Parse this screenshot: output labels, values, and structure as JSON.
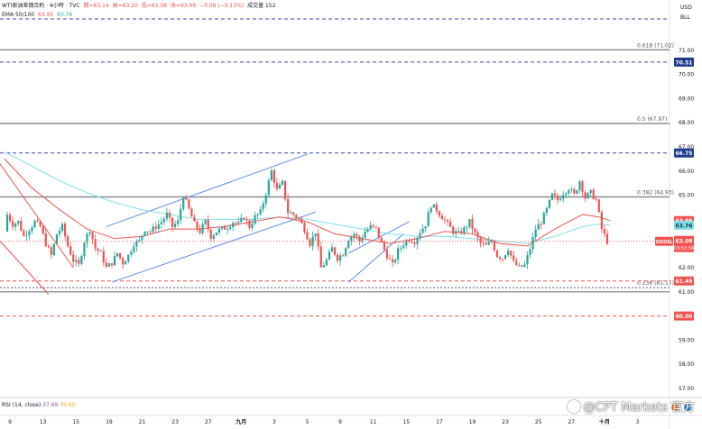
{
  "legend": {
    "symbol": "WTI原油差價合約 · 4小時 · TVC",
    "ohlc": [
      "開=63.14",
      "高=63.20",
      "低=63.08",
      "收=63.09",
      "−0.08 (−0.13%)",
      "成交量 152"
    ],
    "ema_label": "EMA 50/100",
    "ema_values": [
      "63.95",
      "63.76"
    ],
    "rsi_label": "RSI (14, close)",
    "rsi_values": [
      "37.69",
      "39.60"
    ]
  },
  "axis_top": {
    "currency": "USD",
    "unit": "BLL"
  },
  "colors": {
    "up": "#26a69a",
    "down": "#ef5350",
    "ema50": "#ef5350",
    "ema100": "#80deea",
    "channel": "#5b8def",
    "fib": "#787b86",
    "level": "#3949ab",
    "support_line": "#ef5350"
  },
  "watermark": "@CPT Markets 官方",
  "chart_data": {
    "type": "candlestick",
    "y_axis": {
      "ticks": [
        71.0,
        70.0,
        69.0,
        68.0,
        67.0,
        66.0,
        65.0,
        64.0,
        63.0,
        62.0,
        61.0,
        60.0,
        59.0,
        58.0,
        57.0
      ],
      "tick_labels": [
        "71.00",
        "70.00",
        "69.00",
        "68.00",
        "67.00",
        "66.00",
        "65.00",
        "64.00",
        "63.00",
        "62.00",
        "61.00",
        "60.00",
        "59.00",
        "58.00",
        "57.00"
      ],
      "range": [
        56.6,
        72.5
      ]
    },
    "x_axis": {
      "tick_labels": [
        "9",
        "13",
        "15",
        "19",
        "21",
        "23",
        "27",
        "九月",
        "3",
        "5",
        "9",
        "11",
        "15",
        "17",
        "19",
        "23",
        "25",
        "27",
        "十月",
        "3"
      ],
      "tick_index": [
        2,
        14,
        26,
        38,
        50,
        62,
        74,
        86,
        98,
        110,
        122,
        134,
        146,
        158,
        170,
        182,
        194,
        206,
        218,
        230
      ]
    },
    "candles_anchors": [
      [
        0,
        63.5
      ],
      [
        1,
        64.2
      ],
      [
        3,
        63.8
      ],
      [
        5,
        63.9
      ],
      [
        7,
        63.3
      ],
      [
        9,
        63.6
      ],
      [
        11,
        63.9
      ],
      [
        13,
        63.7
      ],
      [
        15,
        63.0
      ],
      [
        17,
        62.5
      ],
      [
        19,
        63.4
      ],
      [
        21,
        63.7
      ],
      [
        23,
        62.9
      ],
      [
        25,
        62.3
      ],
      [
        27,
        62.1
      ],
      [
        29,
        63.1
      ],
      [
        31,
        63.6
      ],
      [
        33,
        62.8
      ],
      [
        35,
        62.6
      ],
      [
        37,
        62.0
      ],
      [
        39,
        62.2
      ],
      [
        41,
        62.6
      ],
      [
        43,
        62.2
      ],
      [
        45,
        62.5
      ],
      [
        47,
        63.0
      ],
      [
        49,
        63.1
      ],
      [
        51,
        63.6
      ],
      [
        53,
        63.5
      ],
      [
        55,
        63.7
      ],
      [
        57,
        63.9
      ],
      [
        59,
        64.2
      ],
      [
        61,
        63.7
      ],
      [
        63,
        63.9
      ],
      [
        65,
        65.0
      ],
      [
        67,
        64.4
      ],
      [
        69,
        63.8
      ],
      [
        71,
        63.5
      ],
      [
        73,
        63.9
      ],
      [
        75,
        63.3
      ],
      [
        77,
        63.5
      ],
      [
        79,
        63.6
      ],
      [
        81,
        63.7
      ],
      [
        83,
        63.9
      ],
      [
        85,
        63.8
      ],
      [
        87,
        64.1
      ],
      [
        89,
        63.7
      ],
      [
        91,
        64.1
      ],
      [
        93,
        64.3
      ],
      [
        95,
        65.1
      ],
      [
        97,
        66.0
      ],
      [
        99,
        65.2
      ],
      [
        101,
        65.5
      ],
      [
        103,
        64.3
      ],
      [
        105,
        64.2
      ],
      [
        107,
        64.0
      ],
      [
        109,
        63.6
      ],
      [
        111,
        63.0
      ],
      [
        113,
        63.5
      ],
      [
        115,
        62.0
      ],
      [
        117,
        62.3
      ],
      [
        119,
        62.8
      ],
      [
        121,
        62.4
      ],
      [
        123,
        62.6
      ],
      [
        125,
        63.2
      ],
      [
        127,
        63.4
      ],
      [
        129,
        63.1
      ],
      [
        131,
        63.5
      ],
      [
        133,
        63.7
      ],
      [
        135,
        63.6
      ],
      [
        137,
        63.0
      ],
      [
        139,
        62.5
      ],
      [
        141,
        62.1
      ],
      [
        143,
        62.7
      ],
      [
        145,
        63.0
      ],
      [
        147,
        63.2
      ],
      [
        149,
        63.1
      ],
      [
        151,
        63.5
      ],
      [
        153,
        63.8
      ],
      [
        155,
        64.6
      ],
      [
        157,
        64.4
      ],
      [
        159,
        64.1
      ],
      [
        161,
        63.8
      ],
      [
        163,
        63.5
      ],
      [
        165,
        63.4
      ],
      [
        167,
        63.6
      ],
      [
        169,
        63.9
      ],
      [
        171,
        63.4
      ],
      [
        173,
        63.0
      ],
      [
        175,
        62.9
      ],
      [
        177,
        63.1
      ],
      [
        179,
        62.5
      ],
      [
        181,
        62.4
      ],
      [
        183,
        62.8
      ],
      [
        185,
        62.2
      ],
      [
        187,
        62.0
      ],
      [
        189,
        62.1
      ],
      [
        191,
        62.8
      ],
      [
        193,
        63.6
      ],
      [
        195,
        63.9
      ],
      [
        197,
        64.4
      ],
      [
        199,
        65.0
      ],
      [
        201,
        64.8
      ],
      [
        203,
        65.1
      ],
      [
        205,
        65.3
      ],
      [
        207,
        65.0
      ],
      [
        209,
        65.6
      ],
      [
        211,
        64.9
      ],
      [
        213,
        65.1
      ],
      [
        215,
        64.8
      ],
      [
        217,
        63.6
      ],
      [
        219,
        63.09
      ]
    ],
    "ema50": [
      [
        0,
        66.5
      ],
      [
        10,
        65.3
      ],
      [
        20,
        64.4
      ],
      [
        30,
        63.6
      ],
      [
        40,
        63.2
      ],
      [
        50,
        63.3
      ],
      [
        60,
        63.6
      ],
      [
        70,
        63.6
      ],
      [
        80,
        63.7
      ],
      [
        90,
        63.9
      ],
      [
        100,
        64.1
      ],
      [
        110,
        63.9
      ],
      [
        120,
        63.4
      ],
      [
        130,
        63.2
      ],
      [
        140,
        63.0
      ],
      [
        150,
        63.2
      ],
      [
        160,
        63.5
      ],
      [
        170,
        63.4
      ],
      [
        180,
        63.0
      ],
      [
        190,
        62.9
      ],
      [
        200,
        63.6
      ],
      [
        210,
        64.2
      ],
      [
        216,
        64.1
      ],
      [
        220,
        63.95
      ]
    ],
    "ema100": [
      [
        0,
        66.8
      ],
      [
        10,
        66.2
      ],
      [
        20,
        65.6
      ],
      [
        30,
        65.1
      ],
      [
        40,
        64.7
      ],
      [
        50,
        64.4
      ],
      [
        60,
        64.2
      ],
      [
        70,
        64.0
      ],
      [
        80,
        64.0
      ],
      [
        90,
        64.0
      ],
      [
        100,
        64.1
      ],
      [
        110,
        64.0
      ],
      [
        120,
        63.8
      ],
      [
        130,
        63.6
      ],
      [
        140,
        63.4
      ],
      [
        150,
        63.3
      ],
      [
        160,
        63.3
      ],
      [
        170,
        63.2
      ],
      [
        180,
        63.1
      ],
      [
        190,
        63.0
      ],
      [
        200,
        63.3
      ],
      [
        210,
        63.7
      ],
      [
        216,
        63.8
      ],
      [
        220,
        63.76
      ]
    ],
    "fib_levels": [
      {
        "label": "0.618 (71.02)",
        "price": 71.02
      },
      {
        "label": "0.5 (67.97)",
        "price": 67.97
      },
      {
        "label": "0.382 (64.93)",
        "price": 64.93
      },
      {
        "label": "0.236 (61.17)",
        "price": 61.17
      }
    ],
    "price_tags": [
      {
        "label": "70.51",
        "price": 70.51,
        "style": "dashed-blue"
      },
      {
        "label": "66.75",
        "price": 66.75,
        "style": "dashed-blue"
      },
      {
        "label": "63.95",
        "price": 63.95,
        "style": "ema50"
      },
      {
        "label": "63.76",
        "price": 63.76,
        "style": "ema100"
      },
      {
        "label": "61.45",
        "price": 61.45,
        "style": "dashed-red"
      },
      {
        "label": "60.00",
        "price": 60.0,
        "style": "dashed-red"
      }
    ],
    "last_price": {
      "symbol": "USOIL",
      "label": "63.09",
      "price": 63.09,
      "countdown": "03:53:56"
    },
    "top_dashed_price": 72.3
  }
}
